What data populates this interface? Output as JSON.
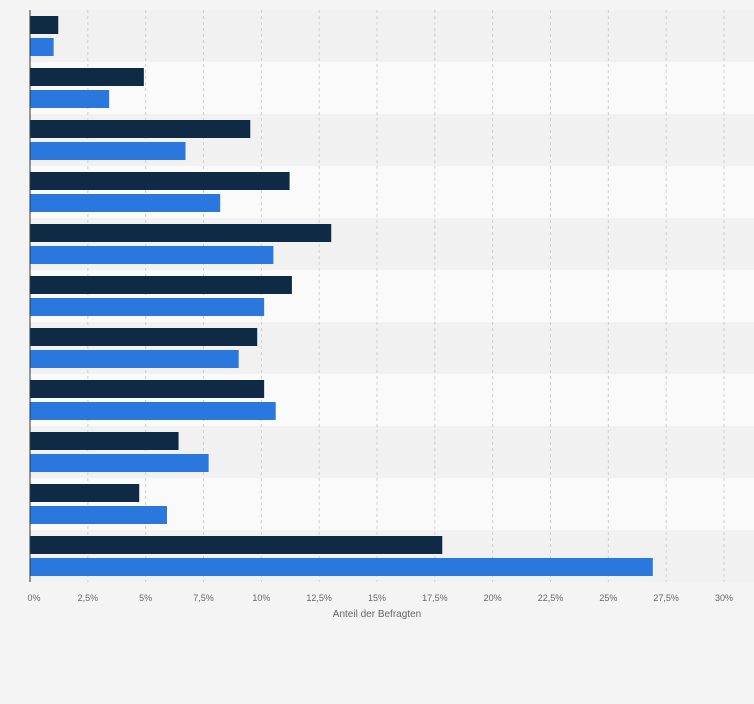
{
  "chart_data": {
    "type": "bar",
    "orientation": "horizontal",
    "xlabel": "Anteil der Befragten",
    "xlim": [
      0,
      30
    ],
    "ticks": [
      "0%",
      "2,5%",
      "5%",
      "7,5%",
      "10%",
      "12,5%",
      "15%",
      "17,5%",
      "20%",
      "22,5%",
      "25%",
      "27,5%",
      "30%"
    ],
    "grid": true,
    "legend": "none",
    "series": [
      {
        "color": "#0f2a44",
        "values": [
          1.2,
          4.9,
          9.5,
          11.2,
          13.0,
          11.3,
          9.8,
          10.1,
          6.4,
          4.7,
          17.8
        ]
      },
      {
        "color": "#2a78de",
        "values": [
          1.0,
          3.4,
          6.7,
          8.2,
          10.5,
          10.1,
          9.0,
          10.6,
          7.7,
          5.9,
          26.9
        ]
      }
    ]
  }
}
